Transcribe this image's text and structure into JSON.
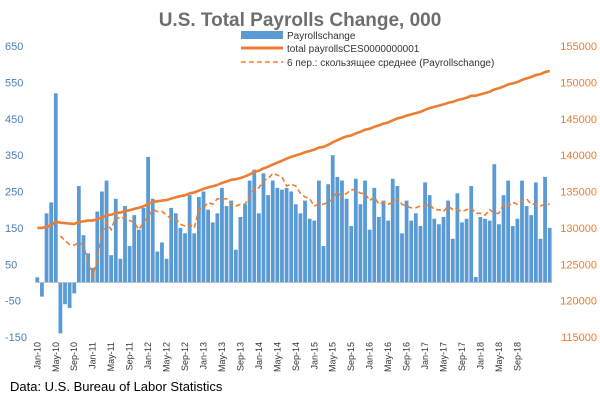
{
  "chart_data": {
    "type": "bar+line",
    "title": "U.S. Total Payrolls Change, 000",
    "source": "Data: U.S. Bureau of Labor Statistics",
    "y_left": {
      "min": -150,
      "max": 650,
      "ticks": [
        -150,
        -50,
        50,
        150,
        250,
        350,
        450,
        550,
        650
      ],
      "tick_labels": [
        "-150",
        "-50",
        "50",
        "150",
        "250",
        "350",
        "450",
        "550",
        "650"
      ]
    },
    "y_right": {
      "min": 115000,
      "max": 155000,
      "ticks": [
        115000,
        120000,
        125000,
        130000,
        135000,
        140000,
        145000,
        150000,
        155000
      ],
      "tick_labels": [
        "115000",
        "120000",
        "125000",
        "130000",
        "135000",
        "140000",
        "145000",
        "150000",
        "155000"
      ]
    },
    "x_tick_labels": [
      {
        "index": 0,
        "label": "Jan-10"
      },
      {
        "index": 4,
        "label": "May-10"
      },
      {
        "index": 8,
        "label": "Sep-10"
      },
      {
        "index": 12,
        "label": "Jan-11"
      },
      {
        "index": 16,
        "label": "May-11"
      },
      {
        "index": 20,
        "label": "Sep-11"
      },
      {
        "index": 24,
        "label": "Jan-12"
      },
      {
        "index": 28,
        "label": "May-12"
      },
      {
        "index": 32,
        "label": "Sep-12"
      },
      {
        "index": 36,
        "label": "Jan-13"
      },
      {
        "index": 40,
        "label": "May-13"
      },
      {
        "index": 44,
        "label": "Sep-13"
      },
      {
        "index": 48,
        "label": "Jan-14"
      },
      {
        "index": 52,
        "label": "May-14"
      },
      {
        "index": 56,
        "label": "Sep-14"
      },
      {
        "index": 60,
        "label": "Jan-15"
      },
      {
        "index": 64,
        "label": "May-15"
      },
      {
        "index": 68,
        "label": "Sep-15"
      },
      {
        "index": 72,
        "label": "Jan-16"
      },
      {
        "index": 76,
        "label": "May-16"
      },
      {
        "index": 80,
        "label": "Sep-16"
      },
      {
        "index": 84,
        "label": "Jan-17"
      },
      {
        "index": 88,
        "label": "May-17"
      },
      {
        "index": 92,
        "label": "Sep-17"
      },
      {
        "index": 96,
        "label": "Jan-18"
      },
      {
        "index": 100,
        "label": "May-18"
      },
      {
        "index": 104,
        "label": "Sep-18"
      }
    ],
    "series": [
      {
        "name": "Payrollschange",
        "kind": "bar",
        "axis": "left",
        "color": "#5b9bd5",
        "values": [
          14,
          -39,
          190,
          220,
          520,
          -140,
          -60,
          -70,
          -30,
          265,
          130,
          80,
          40,
          195,
          250,
          280,
          75,
          230,
          65,
          210,
          100,
          185,
          145,
          205,
          345,
          230,
          85,
          110,
          65,
          205,
          190,
          150,
          135,
          240,
          135,
          235,
          250,
          200,
          165,
          190,
          260,
          210,
          225,
          90,
          180,
          215,
          280,
          310,
          190,
          300,
          240,
          280,
          260,
          255,
          260,
          250,
          215,
          190,
          225,
          175,
          170,
          280,
          100,
          270,
          350,
          290,
          280,
          230,
          155,
          285,
          215,
          280,
          145,
          260,
          180,
          225,
          170,
          285,
          265,
          135,
          225,
          170,
          190,
          155,
          275,
          240,
          175,
          160,
          180,
          225,
          120,
          245,
          165,
          175,
          265,
          15,
          180,
          175,
          170,
          325,
          160,
          240,
          280,
          155,
          175,
          280,
          210,
          185,
          275,
          120,
          290,
          150
        ]
      },
      {
        "name": "total payrollsCES0000000001",
        "kind": "line",
        "axis": "right",
        "color": "#ed7d31",
        "values": [
          129987,
          129993,
          130137,
          130349,
          130870,
          130712,
          130651,
          130588,
          130540,
          130800,
          130910,
          131000,
          131010,
          131200,
          131420,
          131730,
          131800,
          132050,
          132100,
          132320,
          132430,
          132610,
          132760,
          132960,
          133290,
          133550,
          133650,
          133760,
          133820,
          134030,
          134210,
          134360,
          134490,
          134740,
          134870,
          135120,
          135350,
          135560,
          135720,
          135900,
          136180,
          136380,
          136610,
          136690,
          136860,
          137070,
          137350,
          137680,
          137860,
          138170,
          138410,
          138700,
          138970,
          139240,
          139510,
          139760,
          139970,
          140160,
          140390,
          140560,
          140750,
          141040,
          141130,
          141410,
          141760,
          142050,
          142340,
          142570,
          142700,
          142990,
          143200,
          143490,
          143630,
          143890,
          144090,
          144330,
          144490,
          144790,
          145050,
          145200,
          145430,
          145600,
          145780,
          145950,
          146230,
          146470,
          146640,
          146800,
          146970,
          147200,
          147320,
          147560,
          147720,
          147890,
          148150,
          148170,
          148350,
          148530,
          148700,
          149030,
          149190,
          149430,
          149720,
          149870,
          150050,
          150340,
          150550,
          150740,
          151010,
          151130,
          151420,
          151570
        ]
      },
      {
        "name": "6 пер.: скользящее среднее (Payrollschange)",
        "kind": "line-dashed",
        "axis": "left",
        "color": "#ed7d31",
        "values": [
          null,
          null,
          null,
          null,
          null,
          128,
          115,
          104,
          103,
          108,
          103,
          55,
          18,
          65,
          135,
          165,
          145,
          180,
          175,
          180,
          170,
          165,
          145,
          165,
          180,
          200,
          195,
          195,
          185,
          175,
          175,
          160,
          155,
          160,
          150,
          200,
          205,
          220,
          215,
          230,
          230,
          230,
          215,
          210,
          215,
          215,
          235,
          260,
          260,
          280,
          285,
          300,
          295,
          290,
          265,
          270,
          265,
          245,
          235,
          230,
          210,
          215,
          215,
          220,
          230,
          250,
          235,
          245,
          255,
          255,
          245,
          245,
          225,
          235,
          215,
          220,
          215,
          220,
          230,
          215,
          210,
          205,
          205,
          210,
          210,
          215,
          200,
          200,
          195,
          210,
          200,
          200,
          195,
          200,
          205,
          190,
          190,
          185,
          200,
          190,
          190,
          215,
          210,
          220,
          215,
          225,
          230,
          215,
          215,
          210,
          215,
          215
        ]
      }
    ]
  }
}
